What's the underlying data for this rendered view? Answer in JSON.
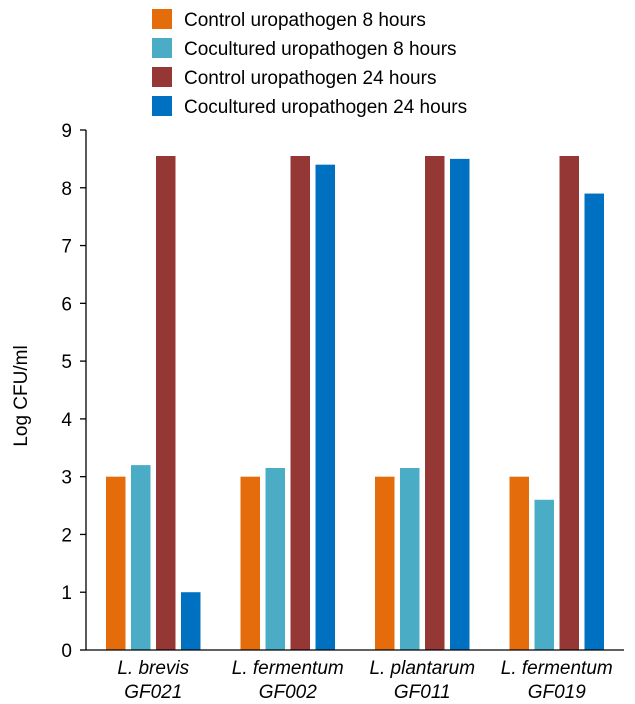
{
  "chart_data": {
    "type": "bar",
    "ylabel": "Log CFU/ml",
    "xlabel": "",
    "ylim": [
      0,
      9
    ],
    "yticks": [
      0,
      1,
      2,
      3,
      4,
      5,
      6,
      7,
      8,
      9
    ],
    "categories": [
      [
        "L. brevis",
        "GF021"
      ],
      [
        "L. fermentum",
        "GF002"
      ],
      [
        "L. plantarum",
        "GF011"
      ],
      [
        "L. fermentum",
        "GF019"
      ]
    ],
    "series": [
      {
        "name": "Control uropathogen 8 hours",
        "color": "#E46C0A",
        "values": [
          3.0,
          3.0,
          3.0,
          3.0
        ]
      },
      {
        "name": "Cocultured uropathogen 8 hours",
        "color": "#4BACC6",
        "values": [
          3.2,
          3.15,
          3.15,
          2.6
        ]
      },
      {
        "name": "Control uropathogen 24 hours",
        "color": "#953735",
        "values": [
          8.55,
          8.55,
          8.55,
          8.55
        ]
      },
      {
        "name": "Cocultured uropathogen 24 hours",
        "color": "#0070C0",
        "values": [
          1.0,
          8.4,
          8.5,
          7.9
        ]
      }
    ],
    "grid": false,
    "legend": "top"
  }
}
